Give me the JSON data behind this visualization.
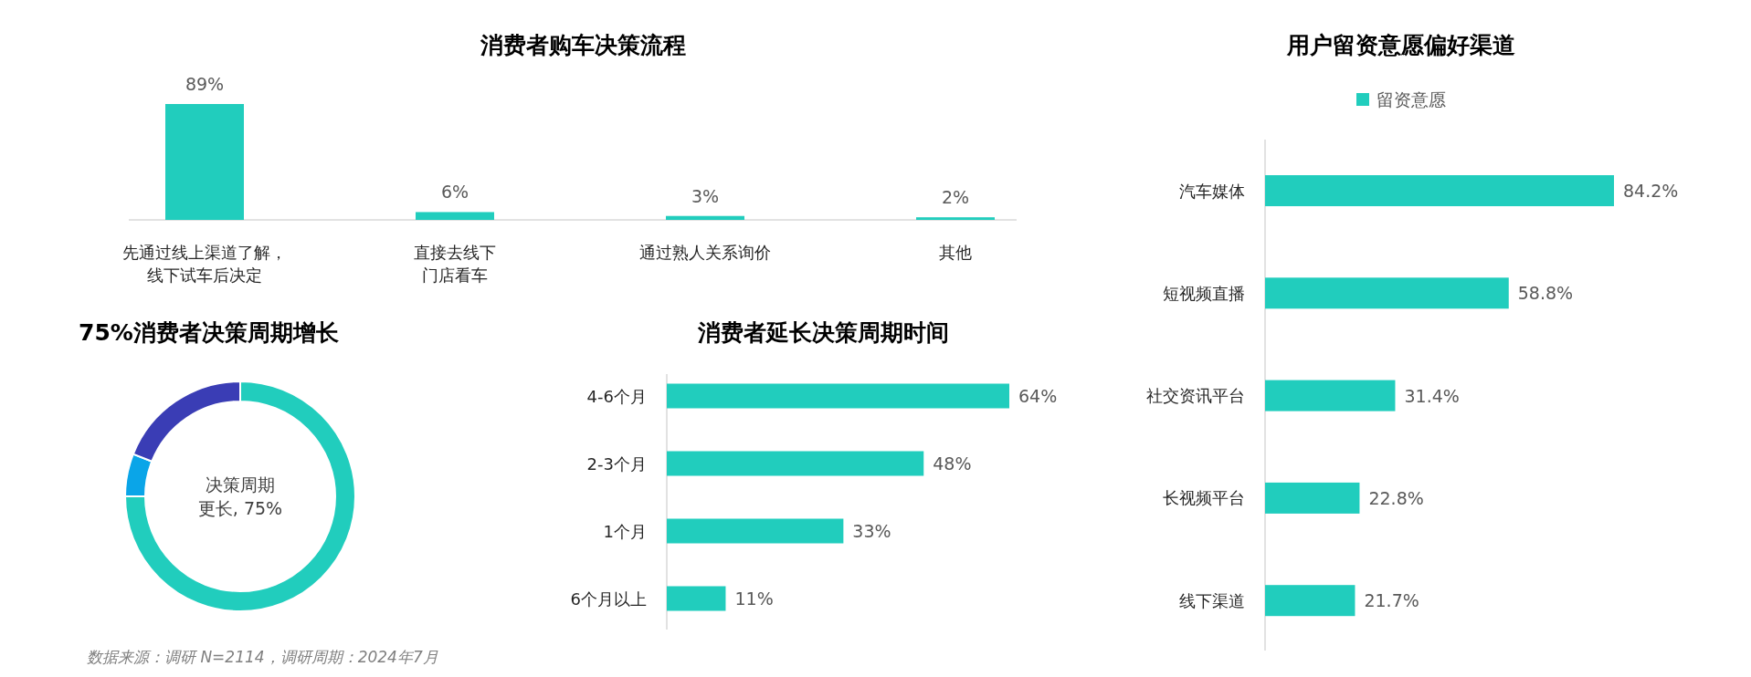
{
  "chart_data": [
    {
      "type": "bar",
      "title": "消费者购车决策流程",
      "categories": [
        "先通过线上渠道了解，线下试车后决定",
        "直接去线下门店看车",
        "通过熟人关系询价",
        "其他"
      ],
      "values": [
        89,
        6,
        3,
        2
      ],
      "value_labels": [
        "89%",
        "6%",
        "3%",
        "2%"
      ],
      "color": "#21cdbd"
    },
    {
      "type": "donut",
      "title": "75%消费者决策周期增长",
      "categories": [
        null,
        null,
        null
      ],
      "values": [
        75,
        6,
        19
      ],
      "colors": [
        "#21cdbd",
        "#0aa5e8",
        "#3a3db5"
      ],
      "annotations": [
        "决策周期更长, 75%",
        "数据来源：调研 N=2114，调研周期：2024年7月"
      ]
    },
    {
      "type": "bar",
      "orientation": "horizontal",
      "title": "消费者延长决策周期时间",
      "categories": [
        "4-6个月",
        "2-3个月",
        "1个月",
        "6个月以上"
      ],
      "values": [
        64,
        48,
        33,
        11
      ],
      "value_labels": [
        "64%",
        "48%",
        "33%",
        "11%"
      ],
      "color": "#21cdbd"
    },
    {
      "type": "bar",
      "orientation": "horizontal",
      "title": "用户留资意愿偏好渠道",
      "categories": [
        "汽车媒体",
        "短视频直播",
        "社交资讯平台",
        "长视频平台",
        "线下渠道"
      ],
      "legend": "top",
      "series": [
        {
          "name": "留资意愿",
          "color": "#21cdbd",
          "values": [
            84.2,
            58.8,
            31.4,
            22.8,
            21.7
          ],
          "value_labels": [
            "84.2%",
            "58.8%",
            "31.4%",
            "22.8%",
            "21.7%"
          ]
        }
      ]
    }
  ]
}
